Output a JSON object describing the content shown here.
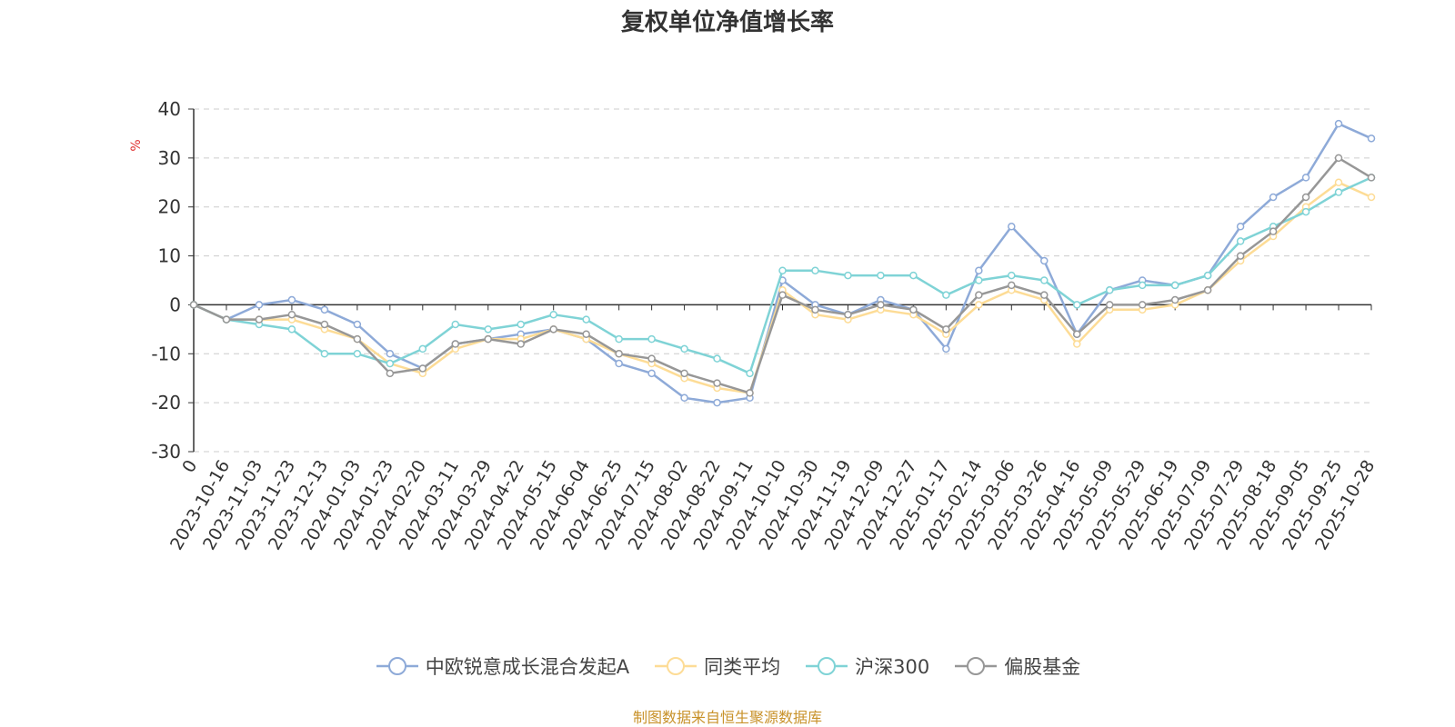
{
  "chart_data": {
    "type": "line",
    "title": "复权单位净值增长率",
    "ylabel": "%",
    "ylim": [
      -30,
      40
    ],
    "yticks": [
      -30,
      -20,
      -10,
      0,
      10,
      20,
      30,
      40
    ],
    "xlabels": [
      "0",
      "2023-10-16",
      "2023-11-03",
      "2023-11-23",
      "2023-12-13",
      "2024-01-03",
      "2024-01-23",
      "2024-02-20",
      "2024-03-11",
      "2024-03-29",
      "2024-04-22",
      "2024-05-15",
      "2024-06-04",
      "2024-06-25",
      "2024-07-15",
      "2024-08-02",
      "2024-08-22",
      "2024-09-11",
      "2024-10-10",
      "2024-10-30",
      "2024-11-19",
      "2024-12-09",
      "2024-12-27",
      "2025-01-17",
      "2025-02-14",
      "2025-03-06",
      "2025-03-26",
      "2025-04-16",
      "2025-05-09",
      "2025-05-29",
      "2025-06-19",
      "2025-07-09",
      "2025-07-29",
      "2025-08-18",
      "2025-09-05",
      "2025-09-25",
      "2025-10-28"
    ],
    "grid": "horizontal-dashed",
    "legend_position": "bottom",
    "series": [
      {
        "name": "中欧锐意成长混合发起A",
        "color": "#8eaad8",
        "values": [
          0,
          -3,
          0,
          1,
          -1,
          -4,
          -10,
          -13,
          -8,
          -7,
          -6,
          -5,
          -7,
          -12,
          -14,
          -19,
          -20,
          -19,
          5,
          0,
          -2,
          1,
          -1,
          -9,
          7,
          16,
          9,
          -6,
          3,
          5,
          4,
          6,
          16,
          22,
          26,
          37,
          34
        ]
      },
      {
        "name": "同类平均",
        "color": "#fddc96",
        "values": [
          0,
          -3,
          -3,
          -3,
          -5,
          -7,
          -12,
          -14,
          -9,
          -7,
          -7,
          -5,
          -7,
          -10,
          -12,
          -15,
          -17,
          -18,
          3,
          -2,
          -3,
          -1,
          -2,
          -6,
          0,
          3,
          1,
          -8,
          -1,
          -1,
          0,
          3,
          9,
          14,
          20,
          25,
          22
        ]
      },
      {
        "name": "沪深300",
        "color": "#7fd3d6",
        "values": [
          0,
          -3,
          -4,
          -5,
          -10,
          -10,
          -12,
          -9,
          -4,
          -5,
          -4,
          -2,
          -3,
          -7,
          -7,
          -9,
          -11,
          -14,
          7,
          7,
          6,
          6,
          6,
          2,
          5,
          6,
          5,
          0,
          3,
          4,
          4,
          6,
          13,
          16,
          19,
          23,
          26
        ]
      },
      {
        "name": "偏股基金",
        "color": "#979797",
        "values": [
          0,
          -3,
          -3,
          -2,
          -4,
          -7,
          -14,
          -13,
          -8,
          -7,
          -8,
          -5,
          -6,
          -10,
          -11,
          -14,
          -16,
          -18,
          2,
          -1,
          -2,
          0,
          -1,
          -5,
          2,
          4,
          2,
          -6,
          0,
          0,
          1,
          3,
          10,
          15,
          22,
          30,
          26
        ]
      }
    ]
  },
  "source_note": "制图数据来自恒生聚源数据库"
}
